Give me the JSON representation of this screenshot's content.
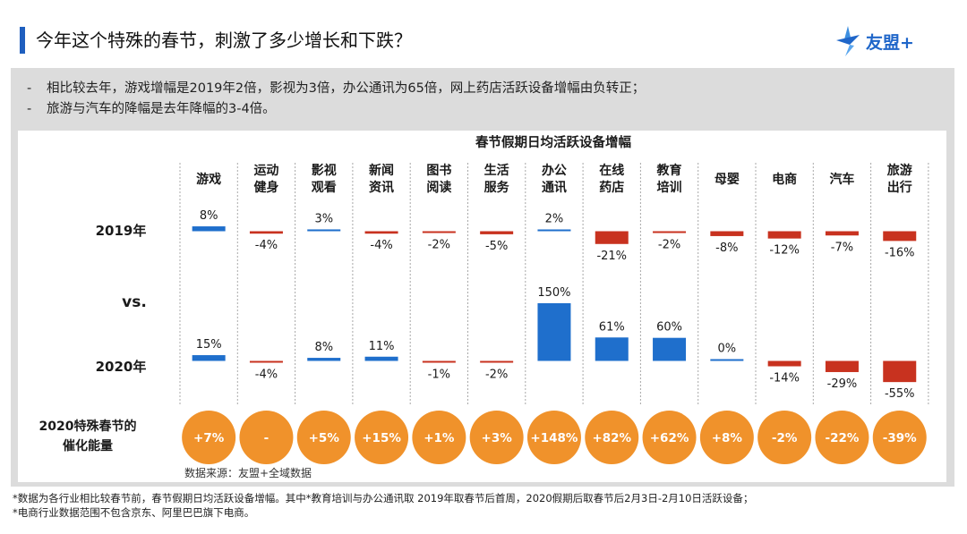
{
  "header": {
    "title": "今年这个特殊的春节，刺激了多少增长和下跌？",
    "logo_text": "友盟+"
  },
  "summary": {
    "bullets": [
      "相比较去年，游戏增幅是2019年2倍，影视为3倍，办公通讯为65倍，网上药店活跃设备增幅由负转正；",
      "旅游与汽车的降幅是去年降幅的3-4倍。"
    ],
    "bullet_marker": "-"
  },
  "chart_data": {
    "type": "bar",
    "title": "春节假期日均活跃设备增幅",
    "categories": [
      "游戏",
      "运动健身",
      "影视观看",
      "新闻资讯",
      "图书阅读",
      "生活服务",
      "办公通讯",
      "在线药店",
      "教育培训",
      "母婴",
      "电商",
      "汽车",
      "旅游出行"
    ],
    "category_lines": [
      [
        "游戏"
      ],
      [
        "运动",
        "健身"
      ],
      [
        "影视",
        "观看"
      ],
      [
        "新闻",
        "资讯"
      ],
      [
        "图书",
        "阅读"
      ],
      [
        "生活",
        "服务"
      ],
      [
        "办公",
        "通讯"
      ],
      [
        "在线",
        "药店"
      ],
      [
        "教育",
        "培训"
      ],
      [
        "母婴"
      ],
      [
        "电商"
      ],
      [
        "汽车"
      ],
      [
        "旅游",
        "出行"
      ]
    ],
    "series": [
      {
        "name": "2019年",
        "values": [
          8,
          -4,
          3,
          -4,
          -2,
          -5,
          2,
          -21,
          -2,
          -8,
          -12,
          -7,
          -16
        ],
        "labels": [
          "8%",
          "-4%",
          "3%",
          "-4%",
          "-2%",
          "-5%",
          "2%",
          "-21%",
          "-2%",
          "-8%",
          "-12%",
          "-7%",
          "-16%"
        ]
      },
      {
        "name": "2020年",
        "values": [
          15,
          -4,
          8,
          11,
          -1,
          -2,
          150,
          61,
          60,
          0,
          -14,
          -29,
          -55
        ],
        "labels": [
          "15%",
          "-4%",
          "8%",
          "11%",
          "-1%",
          "-2%",
          "150%",
          "61%",
          "60%",
          "0%",
          "-14%",
          "-29%",
          "-55%"
        ]
      }
    ],
    "vs_label": "vs.",
    "catalyst": {
      "label_lines": [
        "2020特殊春节的",
        "催化能量"
      ],
      "values": [
        "+7%",
        "-",
        "+5%",
        "+15%",
        "+1%",
        "+3%",
        "+148%",
        "+82%",
        "+62%",
        "+8%",
        "-2%",
        "-22%",
        "-39%"
      ]
    },
    "source": "数据来源：友盟+全域数据",
    "colors": {
      "positive": "#1f6fcc",
      "negative": "#c8321f",
      "catalyst": "#f0922b",
      "divider": "#a8a8a8"
    }
  },
  "footnotes": [
    "*数据为各行业相比较春节前，春节假期日均活跃设备增幅。其中*教育培训与办公通讯取 2019年取春节后首周，2020假期后取春节后2月3日-2月10日活跃设备；",
    "*电商行业数据范围不包含京东、阿里巴巴旗下电商。"
  ]
}
